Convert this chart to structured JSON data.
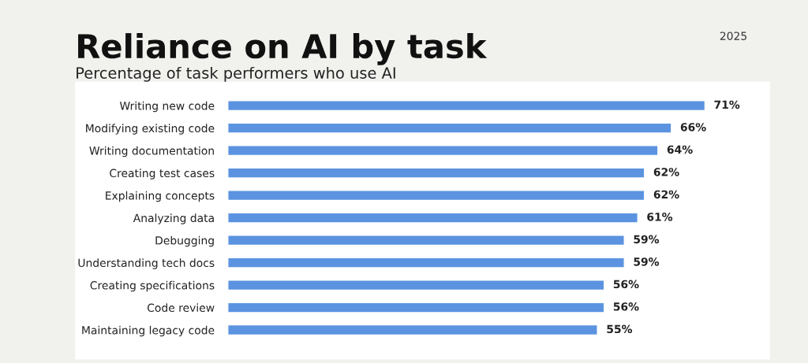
{
  "chart_data": {
    "type": "bar",
    "orientation": "horizontal",
    "title": "Reliance on AI by task",
    "subtitle": "Percentage of task performers who use AI",
    "categories": [
      "Writing new code",
      "Modifying existing code",
      "Writing documentation",
      "Creating test cases",
      "Explaining concepts",
      "Analyzing data",
      "Debugging",
      "Understanding tech docs",
      "Creating specifications",
      "Code review",
      "Maintaining legacy code"
    ],
    "values": [
      71,
      66,
      64,
      62,
      62,
      61,
      59,
      59,
      56,
      56,
      55
    ],
    "value_labels": [
      "71%",
      "66%",
      "64%",
      "62%",
      "62%",
      "61%",
      "59%",
      "59%",
      "56%",
      "56%",
      "55%"
    ],
    "color": "#5b93e0",
    "annotations": [
      "2025"
    ]
  }
}
